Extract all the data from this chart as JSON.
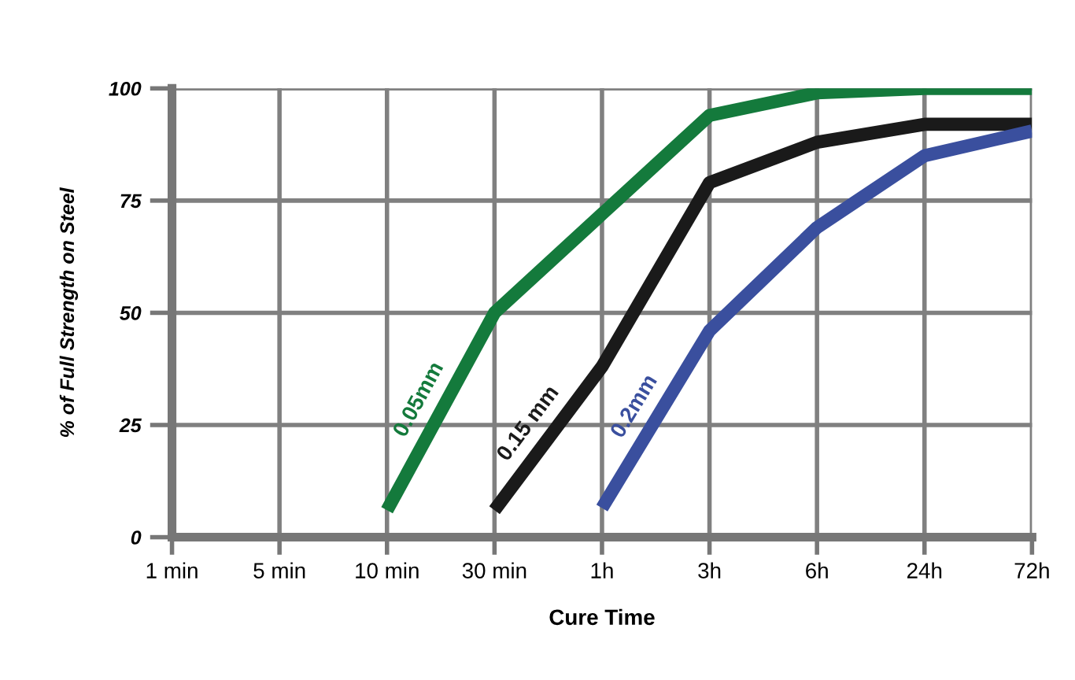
{
  "chart_data": {
    "type": "line",
    "xlabel": "Cure Time",
    "ylabel": "% of Full Strength on Steel",
    "categories": [
      "1 min",
      "5 min",
      "10 min",
      "30 min",
      "1h",
      "3h",
      "6h",
      "24h",
      "72h"
    ],
    "ylim": [
      0,
      100
    ],
    "yticks": [
      0,
      25,
      50,
      75,
      100
    ],
    "grid": true,
    "line_style": "solid",
    "marker": "none",
    "series": [
      {
        "name": "0.05mm",
        "color": "#147a3c",
        "values": [
          null,
          null,
          6,
          50,
          72,
          94,
          99,
          100,
          100
        ]
      },
      {
        "name": "0.15 mm",
        "color": "#1a1a1a",
        "values": [
          null,
          null,
          null,
          6,
          38,
          79,
          88,
          92,
          92
        ]
      },
      {
        "name": "0.2mm",
        "color": "#3a4f9e",
        "values": [
          null,
          null,
          null,
          null,
          6.5,
          46,
          69,
          85,
          90.5
        ]
      }
    ]
  }
}
